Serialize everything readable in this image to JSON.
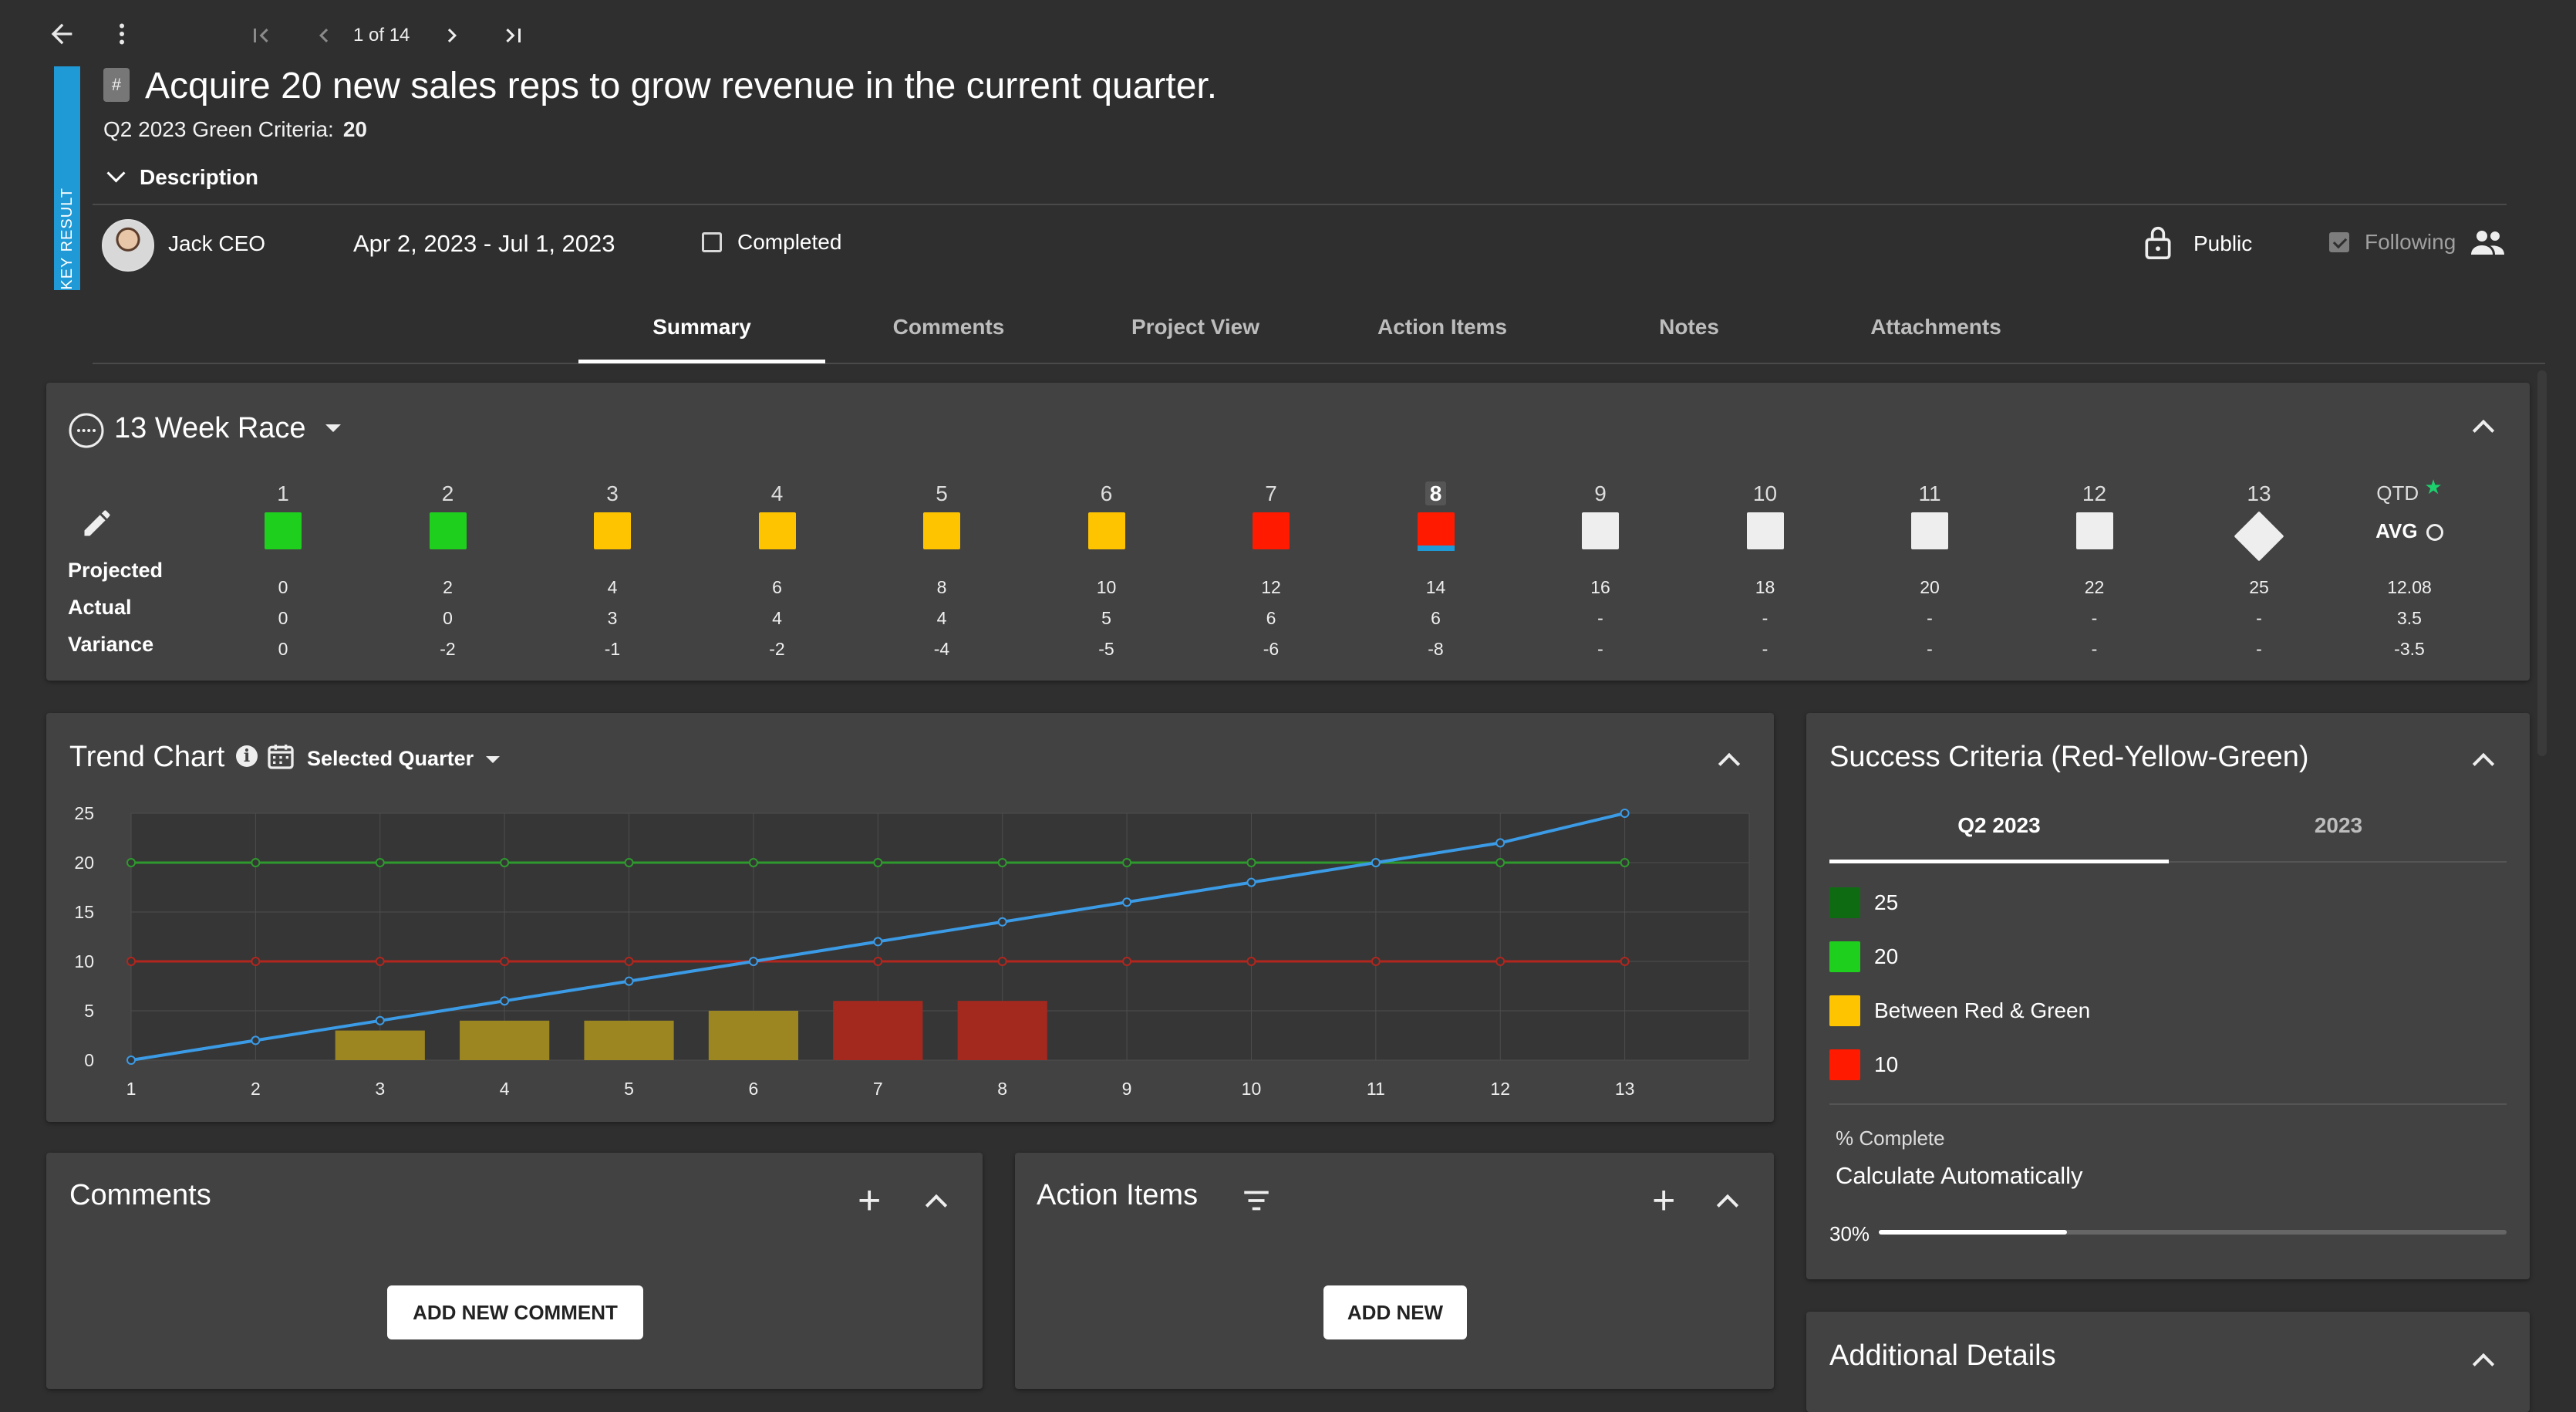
{
  "nav": {
    "pager_text": "1 of 14"
  },
  "key_result": {
    "strip_label": "KEY RESULT",
    "hash_label": "#",
    "title": "Acquire 20 new sales reps to grow revenue in the current quarter.",
    "criteria_label": "Q2 2023 Green Criteria:",
    "criteria_value": "20",
    "description_label": "Description"
  },
  "meta": {
    "owner": "Jack CEO",
    "date_range": "Apr 2, 2023 - Jul 1, 2023",
    "completed_label": "Completed",
    "visibility": "Public",
    "following_label": "Following"
  },
  "tabs": [
    {
      "label": "Summary"
    },
    {
      "label": "Comments"
    },
    {
      "label": "Project View"
    },
    {
      "label": "Action Items"
    },
    {
      "label": "Notes"
    },
    {
      "label": "Attachments"
    }
  ],
  "race": {
    "title": "13 Week Race",
    "row_labels": {
      "projected": "Projected",
      "actual": "Actual",
      "variance": "Variance"
    },
    "weeks": [
      {
        "num": "1",
        "color": "#1ecf1e",
        "projected": "0",
        "actual": "0",
        "variance": "0"
      },
      {
        "num": "2",
        "color": "#1ecf1e",
        "projected": "2",
        "actual": "0",
        "variance": "-2"
      },
      {
        "num": "3",
        "color": "#ffc400",
        "projected": "4",
        "actual": "3",
        "variance": "-1"
      },
      {
        "num": "4",
        "color": "#ffc400",
        "projected": "6",
        "actual": "4",
        "variance": "-2"
      },
      {
        "num": "5",
        "color": "#ffc400",
        "projected": "8",
        "actual": "4",
        "variance": "-4"
      },
      {
        "num": "6",
        "color": "#ffc400",
        "projected": "10",
        "actual": "5",
        "variance": "-5"
      },
      {
        "num": "7",
        "color": "#ff1a00",
        "projected": "12",
        "actual": "6",
        "variance": "-6"
      },
      {
        "num": "8",
        "color": "#ff1a00",
        "projected": "14",
        "actual": "6",
        "variance": "-8"
      },
      {
        "num": "9",
        "color": "#eeeeee",
        "projected": "16",
        "actual": "-",
        "variance": "-"
      },
      {
        "num": "10",
        "color": "#eeeeee",
        "projected": "18",
        "actual": "-",
        "variance": "-"
      },
      {
        "num": "11",
        "color": "#eeeeee",
        "projected": "20",
        "actual": "-",
        "variance": "-"
      },
      {
        "num": "12",
        "color": "#eeeeee",
        "projected": "22",
        "actual": "-",
        "variance": "-"
      },
      {
        "num": "13",
        "color": "#eeeeee",
        "projected": "25",
        "actual": "-",
        "variance": "-"
      }
    ],
    "current_week": "8",
    "qtd": {
      "label": "QTD",
      "avg_label": "AVG",
      "projected": "12.08",
      "actual": "3.5",
      "variance": "-3.5"
    }
  },
  "trend": {
    "title": "Trend Chart",
    "period_label": "Selected Quarter"
  },
  "chart_data": {
    "type": "bar",
    "categories": [
      "1",
      "2",
      "3",
      "4",
      "5",
      "6",
      "7",
      "8",
      "9",
      "10",
      "11",
      "12",
      "13"
    ],
    "ylim": [
      0,
      25
    ],
    "yticks": [
      "0",
      "5",
      "10",
      "15",
      "20",
      "25"
    ],
    "grid": true,
    "bars": [
      {
        "x": "3",
        "value": 3,
        "color": "#9c8621"
      },
      {
        "x": "4",
        "value": 4,
        "color": "#9c8621"
      },
      {
        "x": "5",
        "value": 4,
        "color": "#9c8621"
      },
      {
        "x": "6",
        "value": 5,
        "color": "#9c8621"
      },
      {
        "x": "7",
        "value": 6,
        "color": "#a3291f"
      },
      {
        "x": "8",
        "value": 6,
        "color": "#a3291f"
      }
    ],
    "lines": [
      {
        "color": "#2e9a2e",
        "values": [
          20,
          20,
          20,
          20,
          20,
          20,
          20,
          20,
          20,
          20,
          20,
          20,
          20
        ]
      },
      {
        "color": "#b3261e",
        "values": [
          10,
          10,
          10,
          10,
          10,
          10,
          10,
          10,
          10,
          10,
          10,
          10,
          10
        ]
      },
      {
        "color": "#3b9be6",
        "values": [
          0,
          2,
          4,
          6,
          8,
          10,
          12,
          14,
          16,
          18,
          20,
          22,
          25
        ]
      }
    ]
  },
  "success": {
    "title": "Success Criteria (Red-Yellow-Green)",
    "tabs": [
      {
        "label": "Q2 2023"
      },
      {
        "label": "2023"
      }
    ],
    "items": [
      {
        "color": "#0f6b12",
        "label": "25"
      },
      {
        "color": "#1ecf1e",
        "label": "20"
      },
      {
        "color": "#ffc400",
        "label": "Between Red & Green"
      },
      {
        "color": "#ff1a00",
        "label": "10"
      }
    ],
    "pct_label": "% Complete",
    "pct_mode": "Calculate Automatically",
    "progress_text": "30%",
    "progress": 0.3
  },
  "comments": {
    "title": "Comments",
    "button": "ADD NEW COMMENT"
  },
  "actions": {
    "title": "Action Items",
    "button": "ADD NEW"
  },
  "additional": {
    "title": "Additional Details"
  }
}
